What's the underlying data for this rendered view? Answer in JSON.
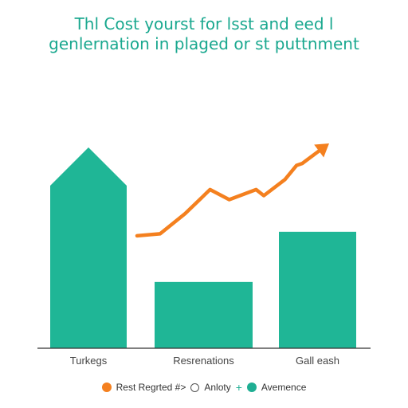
{
  "title_lines": [
    "Thl Cost yourst for lsst and eed l",
    "genlernation in plaged or st puttnment"
  ],
  "colors": {
    "teal": "#1fb696",
    "orange": "#f4801f",
    "title": "#1aa88f",
    "axis": "#333333"
  },
  "legend": {
    "item1_label": "Rest Regrted #>",
    "item2_label": "Anloty",
    "item3_label": "Avemence"
  },
  "chart_data": {
    "type": "bar",
    "categories": [
      "Turkegs",
      "Resrenations",
      "Gall eash"
    ],
    "ylim": [
      0,
      100
    ],
    "series": [
      {
        "type": "bar",
        "values": [
          100,
          33,
          58
        ]
      },
      {
        "type": "line",
        "points": [
          [
            0.0,
            56
          ],
          [
            0.12,
            57
          ],
          [
            0.25,
            67
          ],
          [
            0.38,
            79
          ],
          [
            0.48,
            74
          ],
          [
            0.62,
            79
          ],
          [
            0.66,
            76
          ],
          [
            0.77,
            84
          ],
          [
            0.83,
            91
          ],
          [
            0.86,
            92
          ],
          [
            1.0,
            102
          ]
        ]
      }
    ],
    "xlabel": "",
    "ylabel": ""
  }
}
